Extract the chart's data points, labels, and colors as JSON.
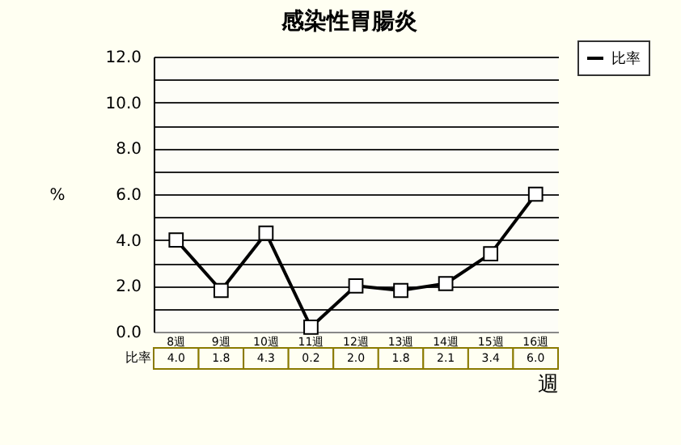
{
  "chart_data": {
    "type": "line",
    "title": "感染性胃腸炎",
    "xlabel": "週",
    "ylabel": "%",
    "categories": [
      "8週",
      "9週",
      "10週",
      "11週",
      "12週",
      "13週",
      "14週",
      "15週",
      "16週"
    ],
    "series": [
      {
        "name": "比率",
        "color": "#000000",
        "values": [
          4.0,
          1.8,
          4.3,
          0.2,
          2.0,
          1.8,
          2.1,
          3.4,
          6.0
        ],
        "value_labels": [
          "4.0",
          "1.8",
          "4.3",
          "0.2",
          "2.0",
          "1.8",
          "2.1",
          "3.4",
          "6.0"
        ]
      }
    ],
    "ylim": [
      0,
      12
    ],
    "yticks": [
      {
        "value": 0,
        "label": "0.0"
      },
      {
        "value": 1,
        "label": null
      },
      {
        "value": 2,
        "label": "2.0"
      },
      {
        "value": 3,
        "label": null
      },
      {
        "value": 4,
        "label": "4.0"
      },
      {
        "value": 5,
        "label": null
      },
      {
        "value": 6,
        "label": "6.0"
      },
      {
        "value": 7,
        "label": null
      },
      {
        "value": 8,
        "label": "8.0"
      },
      {
        "value": 9,
        "label": null
      },
      {
        "value": 10,
        "label": "10.0"
      },
      {
        "value": 11,
        "label": null
      },
      {
        "value": 12,
        "label": "12.0"
      }
    ],
    "grid": "y",
    "legend": "top right",
    "marker": "square",
    "line_style": "solid"
  }
}
